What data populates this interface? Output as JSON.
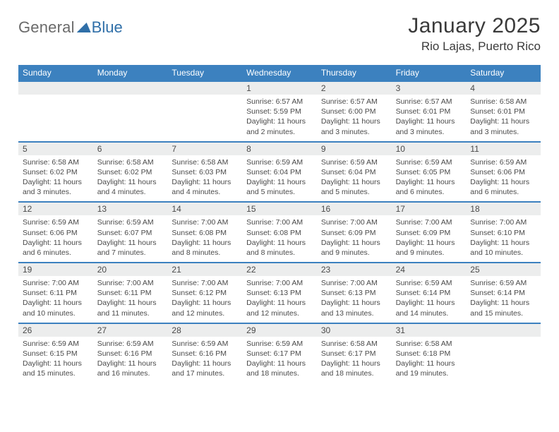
{
  "logo": {
    "text1": "General",
    "text2": "Blue"
  },
  "title": {
    "month": "January 2025",
    "location": "Rio Lajas, Puerto Rico"
  },
  "colors": {
    "header_bg": "#3c81bf",
    "header_text": "#ffffff",
    "row_border": "#3c81bf",
    "daynum_bg": "#eceded",
    "text": "#4a4a4a",
    "logo_gray": "#6a6a6a",
    "logo_blue": "#2f6fa8",
    "page_bg": "#ffffff"
  },
  "layout": {
    "columns": 7,
    "rows": 5,
    "cell_min_height": 58
  },
  "typography": {
    "title_fontsize": 30,
    "loc_fontsize": 17,
    "dayname_fontsize": 12,
    "daynum_fontsize": 12,
    "content_fontsize": 10.5,
    "logo_fontsize": 22
  },
  "day_names": [
    "Sunday",
    "Monday",
    "Tuesday",
    "Wednesday",
    "Thursday",
    "Friday",
    "Saturday"
  ],
  "weeks": [
    [
      {
        "day": "",
        "sunrise": "",
        "sunset": "",
        "daylight": ""
      },
      {
        "day": "",
        "sunrise": "",
        "sunset": "",
        "daylight": ""
      },
      {
        "day": "",
        "sunrise": "",
        "sunset": "",
        "daylight": ""
      },
      {
        "day": "1",
        "sunrise": "Sunrise: 6:57 AM",
        "sunset": "Sunset: 5:59 PM",
        "daylight": "Daylight: 11 hours and 2 minutes."
      },
      {
        "day": "2",
        "sunrise": "Sunrise: 6:57 AM",
        "sunset": "Sunset: 6:00 PM",
        "daylight": "Daylight: 11 hours and 3 minutes."
      },
      {
        "day": "3",
        "sunrise": "Sunrise: 6:57 AM",
        "sunset": "Sunset: 6:01 PM",
        "daylight": "Daylight: 11 hours and 3 minutes."
      },
      {
        "day": "4",
        "sunrise": "Sunrise: 6:58 AM",
        "sunset": "Sunset: 6:01 PM",
        "daylight": "Daylight: 11 hours and 3 minutes."
      }
    ],
    [
      {
        "day": "5",
        "sunrise": "Sunrise: 6:58 AM",
        "sunset": "Sunset: 6:02 PM",
        "daylight": "Daylight: 11 hours and 3 minutes."
      },
      {
        "day": "6",
        "sunrise": "Sunrise: 6:58 AM",
        "sunset": "Sunset: 6:02 PM",
        "daylight": "Daylight: 11 hours and 4 minutes."
      },
      {
        "day": "7",
        "sunrise": "Sunrise: 6:58 AM",
        "sunset": "Sunset: 6:03 PM",
        "daylight": "Daylight: 11 hours and 4 minutes."
      },
      {
        "day": "8",
        "sunrise": "Sunrise: 6:59 AM",
        "sunset": "Sunset: 6:04 PM",
        "daylight": "Daylight: 11 hours and 5 minutes."
      },
      {
        "day": "9",
        "sunrise": "Sunrise: 6:59 AM",
        "sunset": "Sunset: 6:04 PM",
        "daylight": "Daylight: 11 hours and 5 minutes."
      },
      {
        "day": "10",
        "sunrise": "Sunrise: 6:59 AM",
        "sunset": "Sunset: 6:05 PM",
        "daylight": "Daylight: 11 hours and 6 minutes."
      },
      {
        "day": "11",
        "sunrise": "Sunrise: 6:59 AM",
        "sunset": "Sunset: 6:06 PM",
        "daylight": "Daylight: 11 hours and 6 minutes."
      }
    ],
    [
      {
        "day": "12",
        "sunrise": "Sunrise: 6:59 AM",
        "sunset": "Sunset: 6:06 PM",
        "daylight": "Daylight: 11 hours and 6 minutes."
      },
      {
        "day": "13",
        "sunrise": "Sunrise: 6:59 AM",
        "sunset": "Sunset: 6:07 PM",
        "daylight": "Daylight: 11 hours and 7 minutes."
      },
      {
        "day": "14",
        "sunrise": "Sunrise: 7:00 AM",
        "sunset": "Sunset: 6:08 PM",
        "daylight": "Daylight: 11 hours and 8 minutes."
      },
      {
        "day": "15",
        "sunrise": "Sunrise: 7:00 AM",
        "sunset": "Sunset: 6:08 PM",
        "daylight": "Daylight: 11 hours and 8 minutes."
      },
      {
        "day": "16",
        "sunrise": "Sunrise: 7:00 AM",
        "sunset": "Sunset: 6:09 PM",
        "daylight": "Daylight: 11 hours and 9 minutes."
      },
      {
        "day": "17",
        "sunrise": "Sunrise: 7:00 AM",
        "sunset": "Sunset: 6:09 PM",
        "daylight": "Daylight: 11 hours and 9 minutes."
      },
      {
        "day": "18",
        "sunrise": "Sunrise: 7:00 AM",
        "sunset": "Sunset: 6:10 PM",
        "daylight": "Daylight: 11 hours and 10 minutes."
      }
    ],
    [
      {
        "day": "19",
        "sunrise": "Sunrise: 7:00 AM",
        "sunset": "Sunset: 6:11 PM",
        "daylight": "Daylight: 11 hours and 10 minutes."
      },
      {
        "day": "20",
        "sunrise": "Sunrise: 7:00 AM",
        "sunset": "Sunset: 6:11 PM",
        "daylight": "Daylight: 11 hours and 11 minutes."
      },
      {
        "day": "21",
        "sunrise": "Sunrise: 7:00 AM",
        "sunset": "Sunset: 6:12 PM",
        "daylight": "Daylight: 11 hours and 12 minutes."
      },
      {
        "day": "22",
        "sunrise": "Sunrise: 7:00 AM",
        "sunset": "Sunset: 6:13 PM",
        "daylight": "Daylight: 11 hours and 12 minutes."
      },
      {
        "day": "23",
        "sunrise": "Sunrise: 7:00 AM",
        "sunset": "Sunset: 6:13 PM",
        "daylight": "Daylight: 11 hours and 13 minutes."
      },
      {
        "day": "24",
        "sunrise": "Sunrise: 6:59 AM",
        "sunset": "Sunset: 6:14 PM",
        "daylight": "Daylight: 11 hours and 14 minutes."
      },
      {
        "day": "25",
        "sunrise": "Sunrise: 6:59 AM",
        "sunset": "Sunset: 6:14 PM",
        "daylight": "Daylight: 11 hours and 15 minutes."
      }
    ],
    [
      {
        "day": "26",
        "sunrise": "Sunrise: 6:59 AM",
        "sunset": "Sunset: 6:15 PM",
        "daylight": "Daylight: 11 hours and 15 minutes."
      },
      {
        "day": "27",
        "sunrise": "Sunrise: 6:59 AM",
        "sunset": "Sunset: 6:16 PM",
        "daylight": "Daylight: 11 hours and 16 minutes."
      },
      {
        "day": "28",
        "sunrise": "Sunrise: 6:59 AM",
        "sunset": "Sunset: 6:16 PM",
        "daylight": "Daylight: 11 hours and 17 minutes."
      },
      {
        "day": "29",
        "sunrise": "Sunrise: 6:59 AM",
        "sunset": "Sunset: 6:17 PM",
        "daylight": "Daylight: 11 hours and 18 minutes."
      },
      {
        "day": "30",
        "sunrise": "Sunrise: 6:58 AM",
        "sunset": "Sunset: 6:17 PM",
        "daylight": "Daylight: 11 hours and 18 minutes."
      },
      {
        "day": "31",
        "sunrise": "Sunrise: 6:58 AM",
        "sunset": "Sunset: 6:18 PM",
        "daylight": "Daylight: 11 hours and 19 minutes."
      },
      {
        "day": "",
        "sunrise": "",
        "sunset": "",
        "daylight": ""
      }
    ]
  ]
}
